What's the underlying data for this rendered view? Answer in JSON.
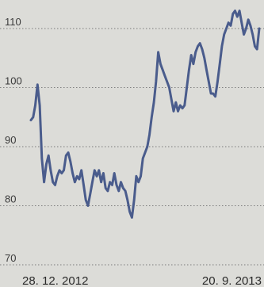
{
  "chart_data": {
    "type": "line",
    "title": "",
    "xlabel": "",
    "ylabel": "",
    "grid": true,
    "legend": "none",
    "ylim": [
      70,
      115
    ],
    "yticks": [
      70,
      80,
      90,
      100,
      110
    ],
    "yticks_labels": [
      "70",
      "80",
      "90",
      "100",
      "110"
    ],
    "x_tick_labels": [
      "28. 12. 2012",
      "20. 9. 2013"
    ],
    "series": [
      {
        "color": "#4a5c8c",
        "values": [
          94.5,
          95,
          97,
          100.5,
          97,
          88,
          84,
          87,
          88.5,
          86,
          84,
          83.5,
          85,
          86,
          85.5,
          86,
          88.5,
          89,
          87.5,
          85.5,
          84,
          85,
          84.5,
          86,
          83.5,
          81,
          80,
          82,
          84,
          86,
          85,
          86,
          84,
          85.5,
          83,
          82.5,
          84,
          83.5,
          85.5,
          83.5,
          82.5,
          84,
          83,
          82.5,
          81,
          79,
          78,
          81,
          85,
          84,
          85,
          88,
          89,
          90,
          92,
          95,
          97.5,
          101,
          106,
          104,
          103,
          102,
          101,
          100,
          98,
          96,
          97.5,
          96,
          97,
          96.5,
          97,
          100,
          103,
          105.5,
          104,
          106,
          107,
          107.5,
          106.5,
          105,
          103,
          101,
          99,
          99,
          98.5,
          101,
          104,
          107,
          109,
          110,
          111,
          110.5,
          112.5,
          113,
          112,
          113,
          111,
          109,
          110,
          111.5,
          110.5,
          109,
          107,
          106.5,
          110
        ]
      }
    ]
  }
}
